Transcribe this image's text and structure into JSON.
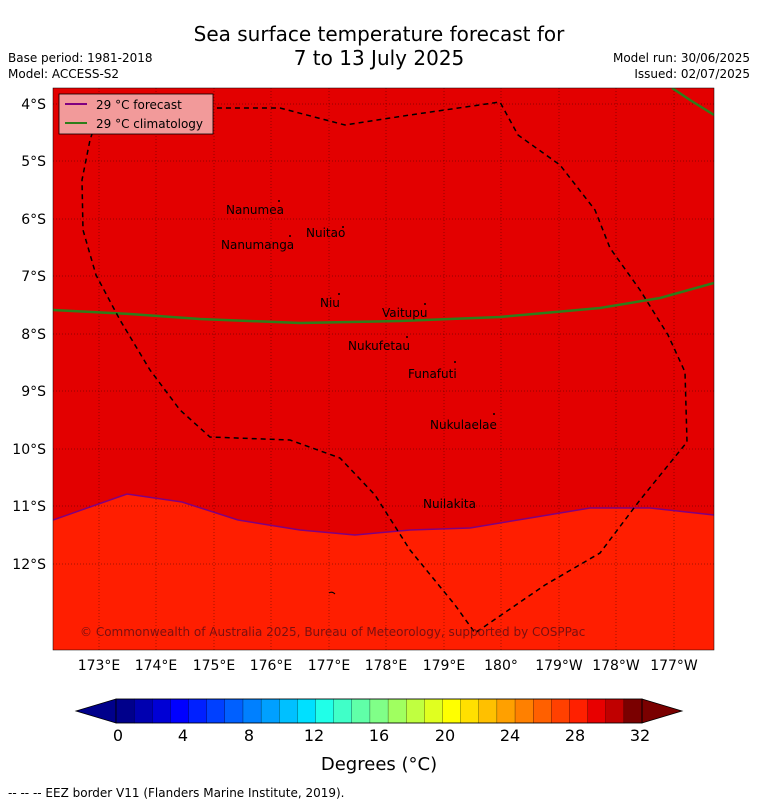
{
  "title_line1": "Sea surface temperature forecast for",
  "title_line2": "7 to 13 July 2025",
  "base_period": "Base period: 1981-2018",
  "model": "Model: ACCESS-S2",
  "model_run": "Model run: 30/06/2025",
  "issued": "Issued: 02/07/2025",
  "legend": {
    "forecast_label": "29 °C  forecast",
    "climatology_label": "29 °C  climatology",
    "forecast_color": "#800080",
    "climatology_color": "#2e7d1a"
  },
  "colors": {
    "warm_region": "#e30000",
    "cooler_region": "#ff1e00",
    "eez_border": "#000000"
  },
  "lat_labels": [
    "4°S",
    "5°S",
    "6°S",
    "7°S",
    "8°S",
    "9°S",
    "10°S",
    "11°S",
    "12°S"
  ],
  "lon_labels": [
    "173°E",
    "174°E",
    "175°E",
    "176°E",
    "177°E",
    "178°E",
    "179°E",
    "180°",
    "179°W",
    "178°W",
    "177°W"
  ],
  "islands": [
    "Nanumea",
    "Nuitao",
    "Nanumanga",
    "Niu",
    "Vaitupu",
    "Nukufetau",
    "Funafuti",
    "Nukulaelae",
    "Nuilakita"
  ],
  "copyright": "© Commonwealth of Australia 2025, Bureau of Meteorology, supported by COSPPac",
  "colorbar": {
    "tick_labels": [
      "0",
      "4",
      "8",
      "12",
      "16",
      "20",
      "24",
      "28",
      "32"
    ],
    "label": "Degrees (°C)",
    "range": [
      0,
      32
    ]
  },
  "footer": "--  --  -- EEZ border V11 (Flanders Marine Institute, 2019)."
}
